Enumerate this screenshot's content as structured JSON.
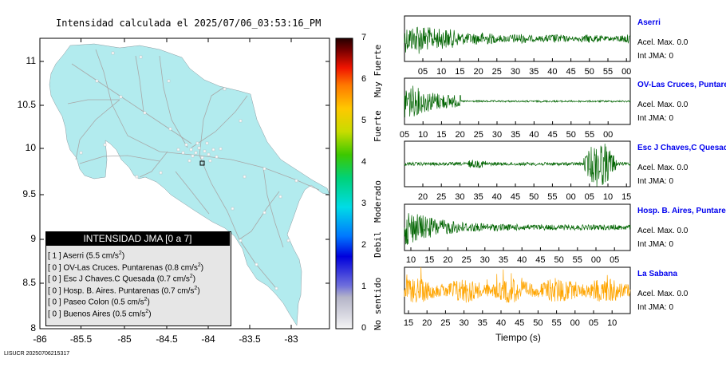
{
  "map": {
    "title": "Intensidad calculada el 2025/07/06_03:53:16_PM",
    "x_ticks": [
      "-86",
      "-85.5",
      "-85",
      "-84.5",
      "-84",
      "-83.5",
      "-83"
    ],
    "y_ticks": [
      "11",
      "10.5",
      "10",
      "9.5",
      "9",
      "8.5",
      "8"
    ],
    "land_color": "#b2ebee",
    "road_color": "#a8a8a8"
  },
  "legend": {
    "title": "INTENSIDAD JMA [0 a 7]",
    "rows": [
      {
        "idx": "[ 1 ]",
        "name": "Aserri (5.5 cm/s",
        "sup": "2",
        "close": ")"
      },
      {
        "idx": "[ 0 ]",
        "name": "OV-Las Cruces. Puntarenas (0.8 cm/s",
        "sup": "2",
        "close": ")"
      },
      {
        "idx": "[ 0 ]",
        "name": "Esc J Chaves.C Quesada (0.7 cm/s",
        "sup": "2",
        "close": ")"
      },
      {
        "idx": "[ 0 ]",
        "name": "Hosp. B. Aires. Puntarenas (0.7 cm/s",
        "sup": "2",
        "close": ")"
      },
      {
        "idx": "[ 0 ]",
        "name": "Paseo Colon (0.5 cm/s",
        "sup": "2",
        "close": ")"
      },
      {
        "idx": "[ 0 ]",
        "name": "Buenos Aires (0.5 cm/s",
        "sup": "2",
        "close": ")"
      }
    ]
  },
  "colorbar": {
    "ticks": [
      "7",
      "6",
      "5",
      "4",
      "3",
      "2",
      "1",
      "0"
    ],
    "labels": [
      "Muy Fuerte",
      "Fuerte",
      "Moderado",
      "Debil",
      "No sentido"
    ]
  },
  "stations": [
    {
      "name": "Aserri",
      "acel": "Acel. Max. 0.0",
      "int": "Int JMA: 0",
      "color": "#006400",
      "ticks": [
        "05",
        "10",
        "15",
        "20",
        "25",
        "30",
        "35",
        "40",
        "45",
        "50",
        "55",
        "00"
      ]
    },
    {
      "name": "OV-Las Cruces, Puntarenas",
      "acel": "Acel. Max. 0.0",
      "int": "Int JMA: 0",
      "color": "#006400",
      "ticks": [
        "05",
        "10",
        "15",
        "20",
        "25",
        "30",
        "35",
        "40",
        "45",
        "50",
        "55",
        "00"
      ]
    },
    {
      "name": "Esc J Chaves,C Quesada",
      "acel": "Acel. Max. 0.0",
      "int": "Int JMA: 0",
      "color": "#006400",
      "ticks": [
        "20",
        "25",
        "30",
        "35",
        "40",
        "45",
        "50",
        "55",
        "00",
        "05",
        "10",
        "15"
      ]
    },
    {
      "name": "Hosp. B. Aires, Puntarenas",
      "acel": "Acel. Max. 0.0",
      "int": "Int JMA: 0",
      "color": "#006400",
      "ticks": [
        "10",
        "15",
        "20",
        "25",
        "30",
        "35",
        "40",
        "45",
        "50",
        "55",
        "00",
        "05"
      ]
    },
    {
      "name": "La Sabana",
      "acel": "Acel. Max. 0.0",
      "int": "Int JMA: 0",
      "color": "#ffa500",
      "ticks": [
        "15",
        "20",
        "25",
        "30",
        "35",
        "40",
        "45",
        "50",
        "55",
        "00",
        "05",
        "10"
      ]
    }
  ],
  "x_axis_label": "Tiempo (s)",
  "footer": "LISUCR 20250706215317"
}
